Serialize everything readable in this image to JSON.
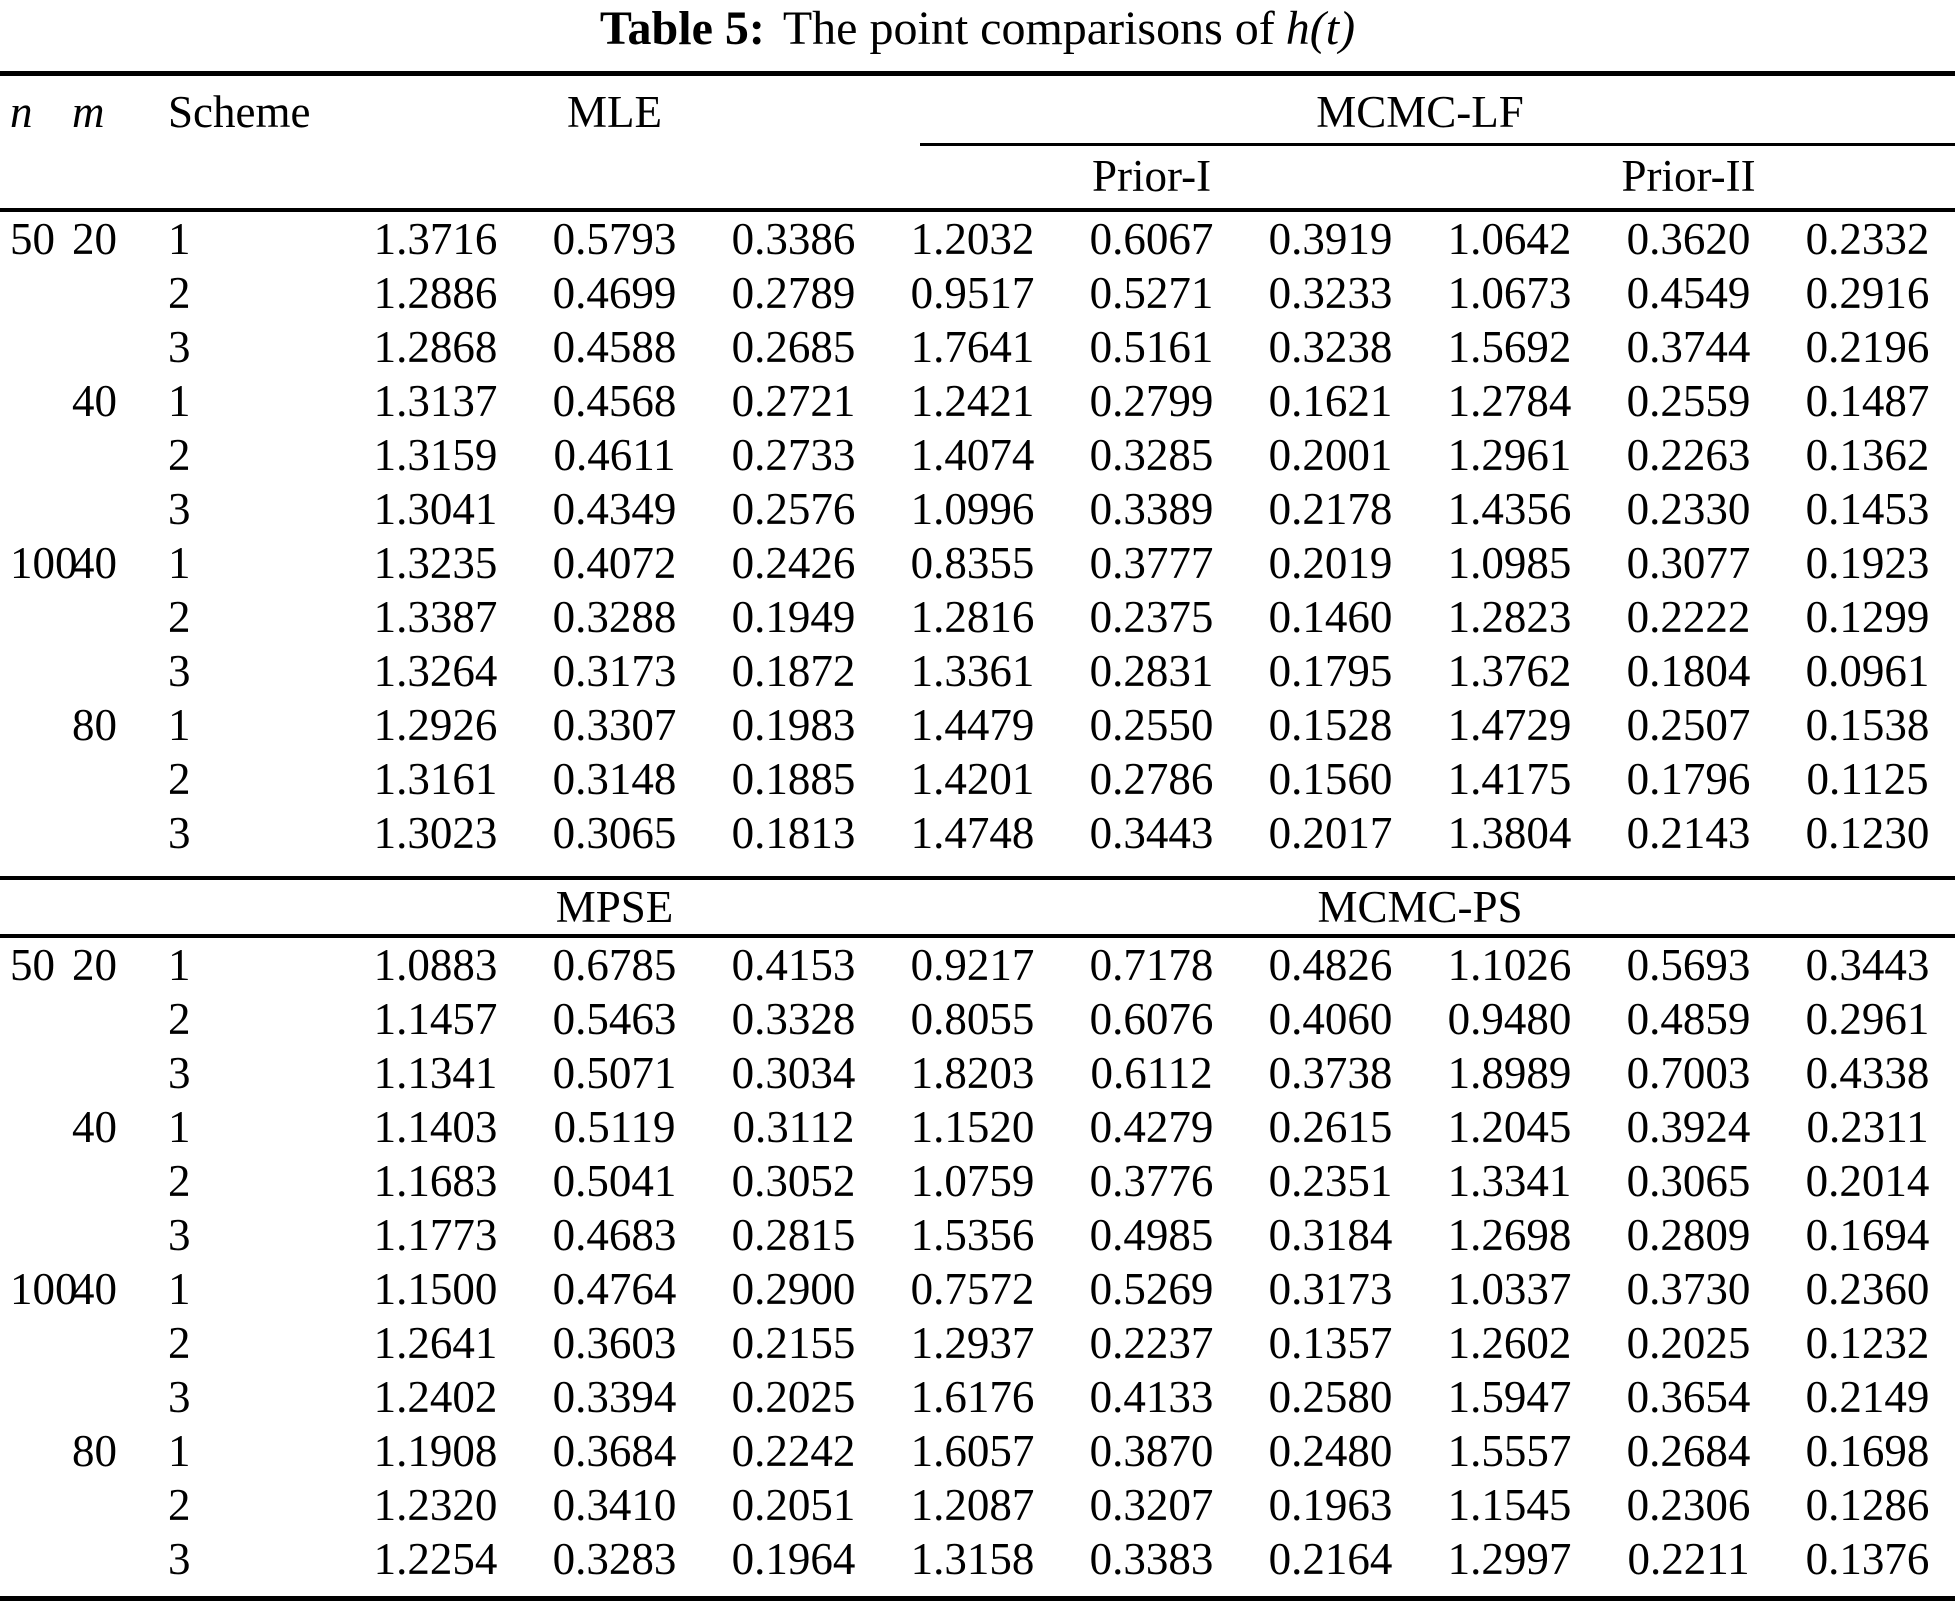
{
  "title": {
    "prefix": "Table 5:",
    "text": "The point comparisons of",
    "math": "h(t)"
  },
  "columns": {
    "n": "n",
    "m": "m",
    "scheme": "Scheme"
  },
  "table": {
    "sections": [
      {
        "left_header": "MLE",
        "right_header": "MCMC-LF",
        "subheaders": [
          "Prior-I",
          "Prior-II"
        ],
        "rows": [
          [
            "50",
            "20",
            "1",
            "1.3716",
            "0.5793",
            "0.3386",
            "1.2032",
            "0.6067",
            "0.3919",
            "1.0642",
            "0.3620",
            "0.2332"
          ],
          [
            "",
            "",
            "2",
            "1.2886",
            "0.4699",
            "0.2789",
            "0.9517",
            "0.5271",
            "0.3233",
            "1.0673",
            "0.4549",
            "0.2916"
          ],
          [
            "",
            "",
            "3",
            "1.2868",
            "0.4588",
            "0.2685",
            "1.7641",
            "0.5161",
            "0.3238",
            "1.5692",
            "0.3744",
            "0.2196"
          ],
          [
            "",
            "40",
            "1",
            "1.3137",
            "0.4568",
            "0.2721",
            "1.2421",
            "0.2799",
            "0.1621",
            "1.2784",
            "0.2559",
            "0.1487"
          ],
          [
            "",
            "",
            "2",
            "1.3159",
            "0.4611",
            "0.2733",
            "1.4074",
            "0.3285",
            "0.2001",
            "1.2961",
            "0.2263",
            "0.1362"
          ],
          [
            "",
            "",
            "3",
            "1.3041",
            "0.4349",
            "0.2576",
            "1.0996",
            "0.3389",
            "0.2178",
            "1.4356",
            "0.2330",
            "0.1453"
          ],
          [
            "100",
            "40",
            "1",
            "1.3235",
            "0.4072",
            "0.2426",
            "0.8355",
            "0.3777",
            "0.2019",
            "1.0985",
            "0.3077",
            "0.1923"
          ],
          [
            "",
            "",
            "2",
            "1.3387",
            "0.3288",
            "0.1949",
            "1.2816",
            "0.2375",
            "0.1460",
            "1.2823",
            "0.2222",
            "0.1299"
          ],
          [
            "",
            "",
            "3",
            "1.3264",
            "0.3173",
            "0.1872",
            "1.3361",
            "0.2831",
            "0.1795",
            "1.3762",
            "0.1804",
            "0.0961"
          ],
          [
            "",
            "80",
            "1",
            "1.2926",
            "0.3307",
            "0.1983",
            "1.4479",
            "0.2550",
            "0.1528",
            "1.4729",
            "0.2507",
            "0.1538"
          ],
          [
            "",
            "",
            "2",
            "1.3161",
            "0.3148",
            "0.1885",
            "1.4201",
            "0.2786",
            "0.1560",
            "1.4175",
            "0.1796",
            "0.1125"
          ],
          [
            "",
            "",
            "3",
            "1.3023",
            "0.3065",
            "0.1813",
            "1.4748",
            "0.3443",
            "0.2017",
            "1.3804",
            "0.2143",
            "0.1230"
          ]
        ]
      },
      {
        "left_header": "MPSE",
        "right_header": "MCMC-PS",
        "rows": [
          [
            "50",
            "20",
            "1",
            "1.0883",
            "0.6785",
            "0.4153",
            "0.9217",
            "0.7178",
            "0.4826",
            "1.1026",
            "0.5693",
            "0.3443"
          ],
          [
            "",
            "",
            "2",
            "1.1457",
            "0.5463",
            "0.3328",
            "0.8055",
            "0.6076",
            "0.4060",
            "0.9480",
            "0.4859",
            "0.2961"
          ],
          [
            "",
            "",
            "3",
            "1.1341",
            "0.5071",
            "0.3034",
            "1.8203",
            "0.6112",
            "0.3738",
            "1.8989",
            "0.7003",
            "0.4338"
          ],
          [
            "",
            "40",
            "1",
            "1.1403",
            "0.5119",
            "0.3112",
            "1.1520",
            "0.4279",
            "0.2615",
            "1.2045",
            "0.3924",
            "0.2311"
          ],
          [
            "",
            "",
            "2",
            "1.1683",
            "0.5041",
            "0.3052",
            "1.0759",
            "0.3776",
            "0.2351",
            "1.3341",
            "0.3065",
            "0.2014"
          ],
          [
            "",
            "",
            "3",
            "1.1773",
            "0.4683",
            "0.2815",
            "1.5356",
            "0.4985",
            "0.3184",
            "1.2698",
            "0.2809",
            "0.1694"
          ],
          [
            "100",
            "40",
            "1",
            "1.1500",
            "0.4764",
            "0.2900",
            "0.7572",
            "0.5269",
            "0.3173",
            "1.0337",
            "0.3730",
            "0.2360"
          ],
          [
            "",
            "",
            "2",
            "1.2641",
            "0.3603",
            "0.2155",
            "1.2937",
            "0.2237",
            "0.1357",
            "1.2602",
            "0.2025",
            "0.1232"
          ],
          [
            "",
            "",
            "3",
            "1.2402",
            "0.3394",
            "0.2025",
            "1.6176",
            "0.4133",
            "0.2580",
            "1.5947",
            "0.3654",
            "0.2149"
          ],
          [
            "",
            "80",
            "1",
            "1.1908",
            "0.3684",
            "0.2242",
            "1.6057",
            "0.3870",
            "0.2480",
            "1.5557",
            "0.2684",
            "0.1698"
          ],
          [
            "",
            "",
            "2",
            "1.2320",
            "0.3410",
            "0.2051",
            "1.2087",
            "0.3207",
            "0.1963",
            "1.1545",
            "0.2306",
            "0.1286"
          ],
          [
            "",
            "",
            "3",
            "1.2254",
            "0.3283",
            "0.1964",
            "1.3158",
            "0.3383",
            "0.2164",
            "1.2997",
            "0.2211",
            "0.1376"
          ]
        ]
      }
    ]
  }
}
